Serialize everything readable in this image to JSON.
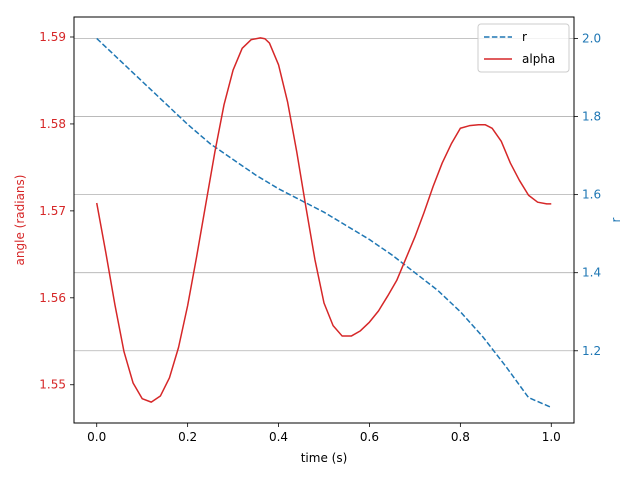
{
  "chart_data": {
    "type": "line",
    "xlabel": "time (s)",
    "ylabel_left": "angle (radians)",
    "ylabel_right": "r",
    "xlim": [
      -0.05,
      1.05
    ],
    "ylim_left": [
      1.5456,
      1.5923
    ],
    "ylim_right": [
      1.015,
      2.055
    ],
    "x_ticks": [
      0.0,
      0.2,
      0.4,
      0.6,
      0.8,
      1.0
    ],
    "x_tick_labels": [
      "0.0",
      "0.2",
      "0.4",
      "0.6",
      "0.8",
      "1.0"
    ],
    "left_ticks": [
      1.55,
      1.56,
      1.57,
      1.58,
      1.59
    ],
    "left_tick_labels": [
      "1.55",
      "1.56",
      "1.57",
      "1.58",
      "1.59"
    ],
    "right_ticks": [
      1.2,
      1.4,
      1.6,
      1.8,
      2.0
    ],
    "right_tick_labels": [
      "1.2",
      "1.4",
      "1.6",
      "1.8",
      "2.0"
    ],
    "grid": "horizontal lines at right-axis ticks",
    "legend_placement": "top-right",
    "series": [
      {
        "name": "r",
        "axis": "right",
        "style": "dashed",
        "color": "#1f77b4",
        "x": [
          0.0,
          0.05,
          0.1,
          0.15,
          0.2,
          0.25,
          0.3,
          0.35,
          0.4,
          0.45,
          0.5,
          0.55,
          0.6,
          0.65,
          0.7,
          0.75,
          0.8,
          0.85,
          0.9,
          0.95,
          1.0
        ],
        "y": [
          2.0,
          1.945,
          1.89,
          1.835,
          1.78,
          1.73,
          1.69,
          1.65,
          1.615,
          1.585,
          1.555,
          1.52,
          1.485,
          1.445,
          1.4,
          1.355,
          1.3,
          1.235,
          1.16,
          1.08,
          1.055
        ]
      },
      {
        "name": "alpha",
        "axis": "left",
        "style": "solid",
        "color": "#d62728",
        "x": [
          0.0,
          0.02,
          0.04,
          0.06,
          0.08,
          0.1,
          0.12,
          0.14,
          0.16,
          0.18,
          0.2,
          0.22,
          0.24,
          0.26,
          0.28,
          0.3,
          0.32,
          0.34,
          0.36,
          0.37,
          0.38,
          0.4,
          0.42,
          0.44,
          0.46,
          0.48,
          0.5,
          0.52,
          0.54,
          0.56,
          0.58,
          0.6,
          0.62,
          0.64,
          0.66,
          0.68,
          0.7,
          0.72,
          0.74,
          0.76,
          0.78,
          0.8,
          0.82,
          0.84,
          0.855,
          0.87,
          0.89,
          0.91,
          0.93,
          0.95,
          0.97,
          0.99,
          1.0
        ],
        "y": [
          1.5709,
          1.5652,
          1.5592,
          1.5538,
          1.5502,
          1.5484,
          1.548,
          1.5487,
          1.5508,
          1.5543,
          1.5591,
          1.5648,
          1.5708,
          1.5768,
          1.5822,
          1.5862,
          1.5887,
          1.5897,
          1.5899,
          1.5898,
          1.5893,
          1.5868,
          1.5825,
          1.5768,
          1.5705,
          1.5644,
          1.5594,
          1.5568,
          1.5556,
          1.5556,
          1.5562,
          1.5572,
          1.5585,
          1.5602,
          1.562,
          1.5645,
          1.567,
          1.5698,
          1.5728,
          1.5755,
          1.5777,
          1.5795,
          1.5798,
          1.5799,
          1.5799,
          1.5795,
          1.578,
          1.5755,
          1.5735,
          1.5718,
          1.571,
          1.5708,
          1.5708
        ]
      }
    ]
  }
}
